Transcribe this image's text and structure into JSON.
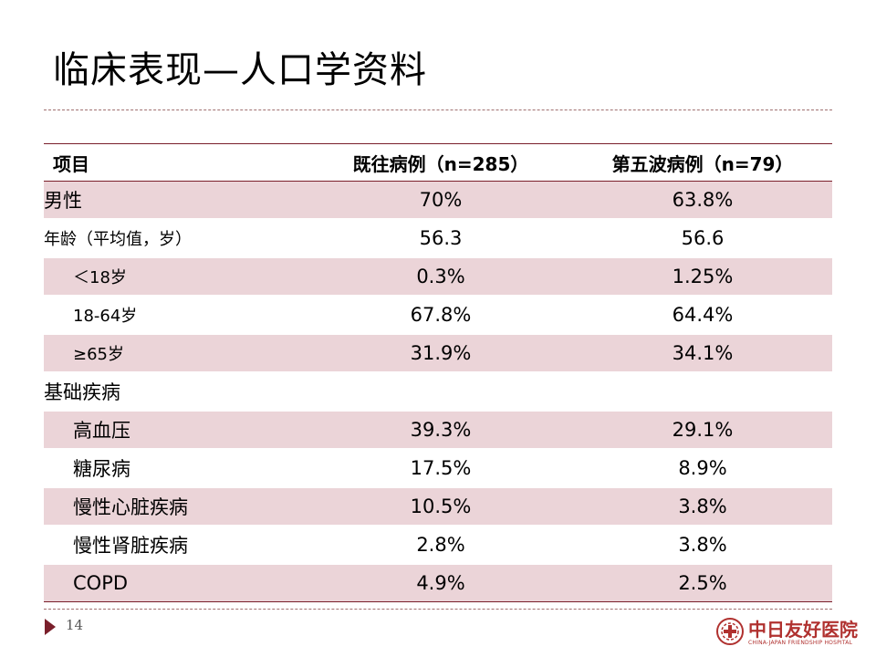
{
  "slide": {
    "title": "临床表现—人口学资料",
    "page_number": "14"
  },
  "table": {
    "headers": [
      "项目",
      "既往病例（n=285）",
      "第五波病例（n=79）"
    ],
    "rows": [
      {
        "label": "男性",
        "v1": "70%",
        "v2": "63.8%"
      },
      {
        "label": "年龄（平均值，岁）",
        "v1": "56.3",
        "v2": "56.6"
      },
      {
        "label": "＜18岁",
        "v1": "0.3%",
        "v2": "1.25%"
      },
      {
        "label": "18-64岁",
        "v1": "67.8%",
        "v2": "64.4%"
      },
      {
        "label": "≥65岁",
        "v1": "31.9%",
        "v2": "34.1%"
      },
      {
        "label": "基础疾病",
        "v1": "",
        "v2": ""
      },
      {
        "label": "高血压",
        "v1": "39.3%",
        "v2": "29.1%"
      },
      {
        "label": "糖尿病",
        "v1": "17.5%",
        "v2": "8.9%"
      },
      {
        "label": "慢性心脏疾病",
        "v1": "10.5%",
        "v2": "3.8%"
      },
      {
        "label": "慢性肾脏疾病",
        "v1": "2.8%",
        "v2": "3.8%"
      },
      {
        "label": "COPD",
        "v1": "4.9%",
        "v2": "2.5%"
      }
    ]
  },
  "logo": {
    "name": "中日友好医院",
    "subtitle": "CHINA-JAPAN FRIENDSHIP HOSPITAL"
  },
  "colors": {
    "accent": "#7a1f2b",
    "row_shade": "#ebd4d8",
    "logo_red": "#b0312f"
  }
}
